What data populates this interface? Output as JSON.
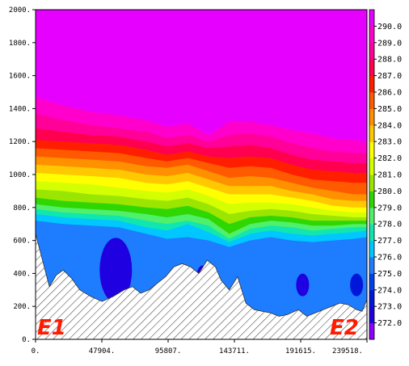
{
  "chart_data": {
    "type": "heatmap",
    "subtype": "filled-contour cross-section",
    "x_range": [
      0,
      239518
    ],
    "y_range": [
      0,
      2000
    ],
    "x_ticks": [
      "0.",
      "47904.",
      "95807.",
      "143711.",
      "191615.",
      "239518."
    ],
    "y_ticks": [
      "0.",
      "200.",
      "400.",
      "600.",
      "800.",
      "1000.",
      "1200.",
      "1400.",
      "1600.",
      "1800.",
      "2000."
    ],
    "corner_labels": [
      "E1",
      "E2"
    ],
    "colorbar": {
      "levels": [
        "272.0",
        "273.0",
        "274.0",
        "275.0",
        "276.0",
        "277.0",
        "278.0",
        "279.0",
        "280.0",
        "281.0",
        "282.0",
        "283.0",
        "284.0",
        "285.0",
        "286.0",
        "287.0",
        "288.0",
        "289.0",
        "290.0"
      ],
      "colors": [
        "#8c00ff",
        "#1f00e0",
        "#0016d8",
        "#0040ee",
        "#1e7cff",
        "#00c7ff",
        "#11e6b0",
        "#4ff06b",
        "#2fd600",
        "#9ae600",
        "#d4ff00",
        "#ffff00",
        "#ffc800",
        "#ff9000",
        "#ff5a00",
        "#ff1e00",
        "#ff0050",
        "#ff0099",
        "#ff00cc",
        "#e600ff"
      ]
    },
    "terrain_profile": {
      "x": [
        0,
        5000,
        10000,
        15000,
        20000,
        26000,
        32000,
        40000,
        48000,
        56000,
        64000,
        70000,
        76000,
        82000,
        88000,
        94000,
        100000,
        106000,
        112000,
        118000,
        124000,
        130000,
        134000,
        140000,
        146000,
        152000,
        158000,
        164000,
        170000,
        176000,
        182000,
        190000,
        196000,
        202000,
        208000,
        214000,
        220000,
        226000,
        232000,
        236000,
        239518
      ],
      "y": [
        640,
        480,
        320,
        390,
        420,
        370,
        300,
        260,
        230,
        260,
        300,
        320,
        280,
        300,
        340,
        380,
        440,
        460,
        440,
        400,
        480,
        440,
        360,
        300,
        380,
        220,
        180,
        170,
        160,
        140,
        150,
        180,
        140,
        160,
        180,
        200,
        220,
        210,
        180,
        170,
        240
      ]
    },
    "isotherm_heights": {
      "x": [
        0,
        20000,
        40000,
        60000,
        80000,
        95000,
        110000,
        125000,
        140000,
        155000,
        170000,
        185000,
        200000,
        215000,
        230000,
        239518
      ],
      "levels": {
        "276.0": [
          720,
          700,
          690,
          680,
          640,
          610,
          620,
          600,
          560,
          600,
          620,
          600,
          590,
          600,
          610,
          620
        ],
        "277.0": [
          760,
          740,
          730,
          720,
          680,
          660,
          700,
          650,
          590,
          640,
          660,
          640,
          630,
          640,
          650,
          660
        ],
        "278.0": [
          790,
          770,
          760,
          750,
          720,
          700,
          720,
          690,
          610,
          670,
          690,
          680,
          660,
          670,
          680,
          680
        ],
        "279.0": [
          820,
          800,
          790,
          780,
          760,
          740,
          760,
          730,
          640,
          700,
          720,
          710,
          690,
          690,
          700,
          700
        ],
        "280.0": [
          860,
          840,
          830,
          820,
          800,
          790,
          810,
          770,
          700,
          740,
          750,
          740,
          720,
          720,
          720,
          720
        ],
        "281.0": [
          910,
          900,
          880,
          870,
          850,
          840,
          860,
          820,
          760,
          780,
          790,
          780,
          760,
          750,
          740,
          740
        ],
        "282.0": [
          960,
          950,
          940,
          920,
          900,
          890,
          910,
          870,
          820,
          830,
          830,
          820,
          800,
          780,
          770,
          770
        ],
        "283.0": [
          1010,
          1000,
          990,
          980,
          950,
          940,
          960,
          920,
          880,
          880,
          880,
          860,
          840,
          810,
          800,
          800
        ],
        "284.0": [
          1060,
          1050,
          1040,
          1030,
          1000,
          990,
          1010,
          970,
          930,
          930,
          930,
          900,
          880,
          850,
          840,
          840
        ],
        "285.0": [
          1110,
          1100,
          1090,
          1080,
          1050,
          1040,
          1060,
          1020,
          980,
          990,
          980,
          950,
          920,
          900,
          880,
          880
        ],
        "286.0": [
          1160,
          1150,
          1140,
          1130,
          1100,
          1080,
          1100,
          1070,
          1040,
          1050,
          1040,
          1000,
          970,
          960,
          950,
          950
        ],
        "287.0": [
          1210,
          1200,
          1190,
          1180,
          1150,
          1120,
          1140,
          1110,
          1100,
          1110,
          1100,
          1060,
          1030,
          1020,
          1010,
          1010
        ],
        "288.0": [
          1280,
          1260,
          1240,
          1230,
          1200,
          1170,
          1190,
          1160,
          1170,
          1180,
          1160,
          1120,
          1090,
          1080,
          1070,
          1070
        ],
        "289.0": [
          1370,
          1330,
          1300,
          1280,
          1260,
          1220,
          1240,
          1200,
          1240,
          1250,
          1230,
          1190,
          1160,
          1140,
          1130,
          1130
        ],
        "290.0": [
          1470,
          1420,
          1380,
          1360,
          1330,
          1290,
          1310,
          1240,
          1320,
          1320,
          1300,
          1270,
          1250,
          1220,
          1210,
          1200
        ]
      }
    },
    "cold_pool_lows": [
      {
        "x": 58000,
        "y": 420,
        "level": "273.0"
      },
      {
        "x": 121000,
        "y": 380,
        "level": "273.0"
      },
      {
        "x": 193000,
        "y": 330,
        "level": "273.0"
      },
      {
        "x": 232000,
        "y": 330,
        "level": "274.0"
      }
    ]
  }
}
